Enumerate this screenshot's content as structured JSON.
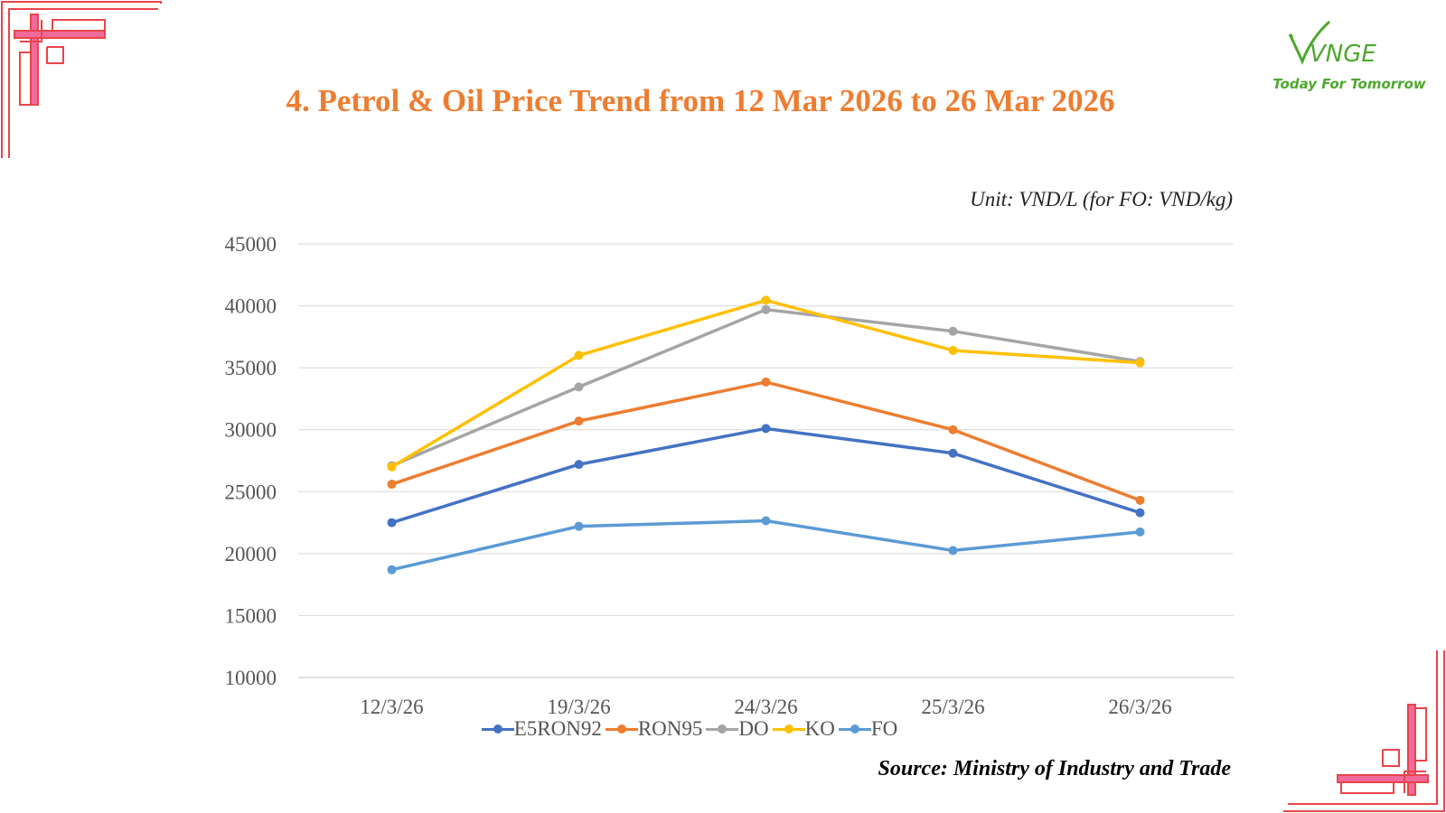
{
  "slide": {
    "title": "4. Petrol & Oil Price Trend from 12 Mar 2026 to 26 Mar 2026",
    "unit_note": "Unit: VND/L (for FO: VND/kg)",
    "source": "Source: Ministry of Industry and Trade",
    "logo": {
      "text": "VNGE",
      "tagline": "Today For Tomorrow",
      "color": "#4EA72E",
      "icon": "leaf-swoosh-icon"
    },
    "corner_colors": {
      "outline": "#E8454A",
      "fill": "#F06A9C"
    }
  },
  "chart_data": {
    "type": "line",
    "title": "4. Petrol & Oil Price Trend from 12 Mar 2026 to 26 Mar 2026",
    "xlabel": "",
    "ylabel": "",
    "categories": [
      "12/3/26",
      "19/3/26",
      "24/3/26",
      "25/3/26",
      "26/3/26"
    ],
    "ylim": [
      10000,
      45000
    ],
    "yticks": [
      10000,
      15000,
      20000,
      25000,
      30000,
      35000,
      40000,
      45000
    ],
    "grid": true,
    "legend": "bottom",
    "series": [
      {
        "name": "E5RON92",
        "color": "#4472C4",
        "values": [
          22500,
          27200,
          30100,
          28100,
          23300
        ]
      },
      {
        "name": "RON95",
        "color": "#ED7D31",
        "values": [
          25600,
          30700,
          33850,
          30000,
          24300
        ]
      },
      {
        "name": "DO",
        "color": "#A5A5A5",
        "values": [
          27100,
          33450,
          39700,
          37950,
          35500
        ]
      },
      {
        "name": "KO",
        "color": "#FFC000",
        "values": [
          27000,
          36000,
          40450,
          36400,
          35400
        ]
      },
      {
        "name": "FO",
        "color": "#5B9BD5",
        "values": [
          18700,
          22200,
          22650,
          20250,
          21750
        ]
      }
    ]
  }
}
